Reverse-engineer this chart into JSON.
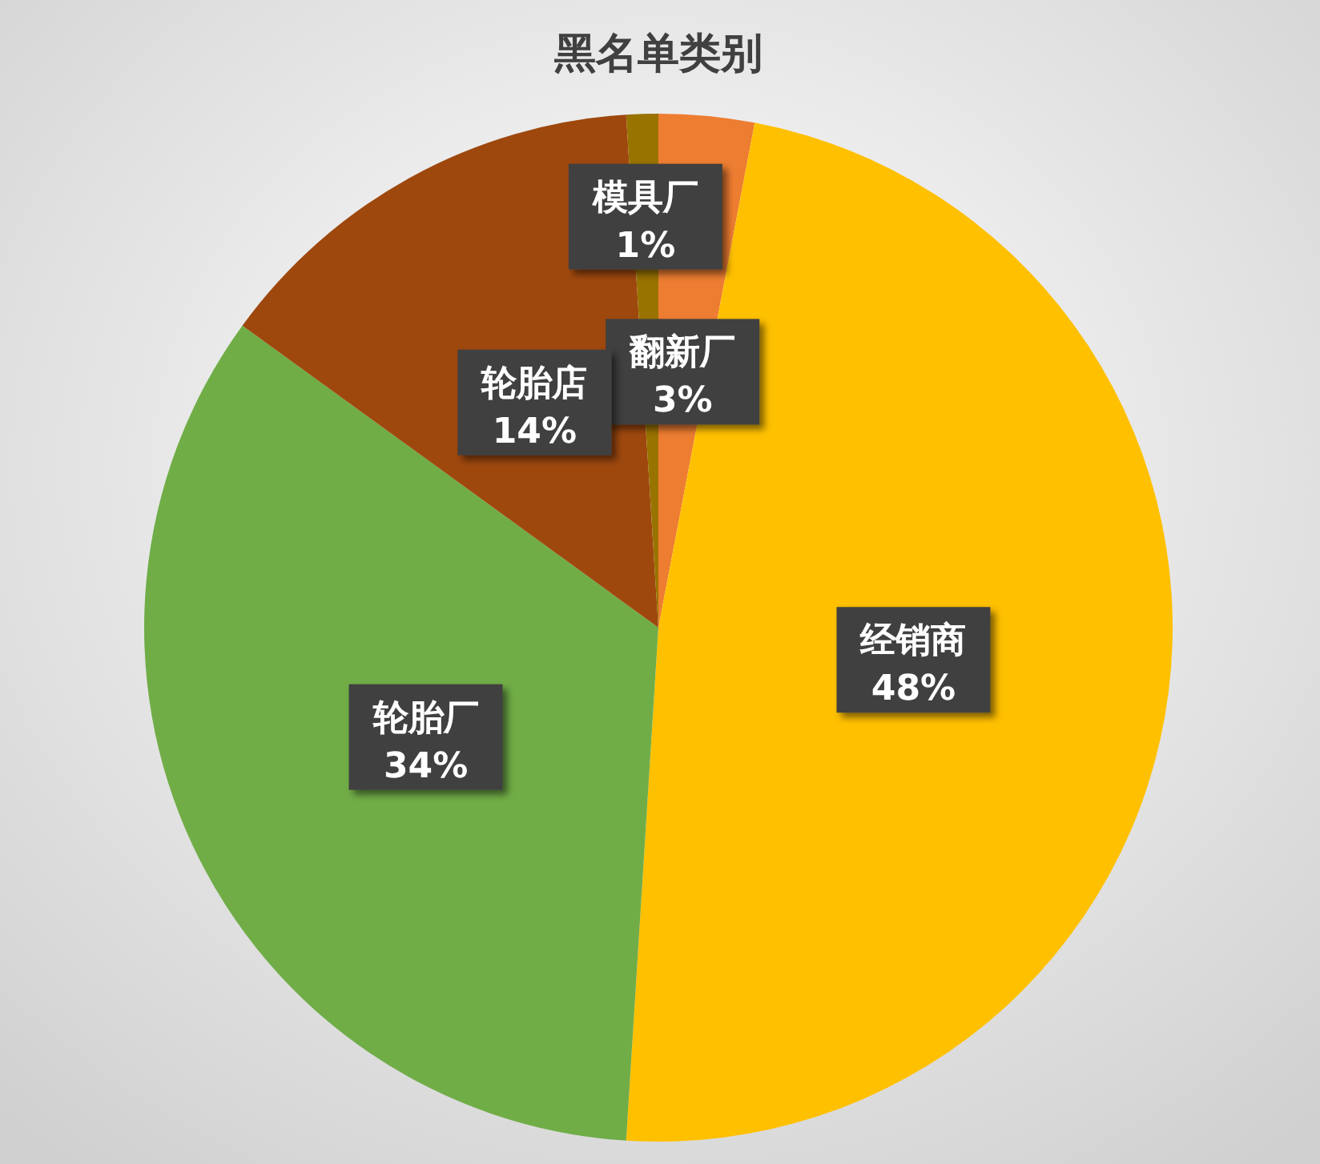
{
  "chart_data": {
    "type": "pie",
    "title": "黑名单类别",
    "categories": [
      "翻新厂",
      "经销商",
      "轮胎厂",
      "轮胎店",
      "模具厂"
    ],
    "values": [
      3,
      48,
      34,
      14,
      1
    ],
    "value_labels": [
      "3%",
      "48%",
      "34%",
      "14%",
      "1%"
    ],
    "colors": [
      "#ed7d31",
      "#ffc000",
      "#70ad47",
      "#9e480e",
      "#997300"
    ]
  }
}
